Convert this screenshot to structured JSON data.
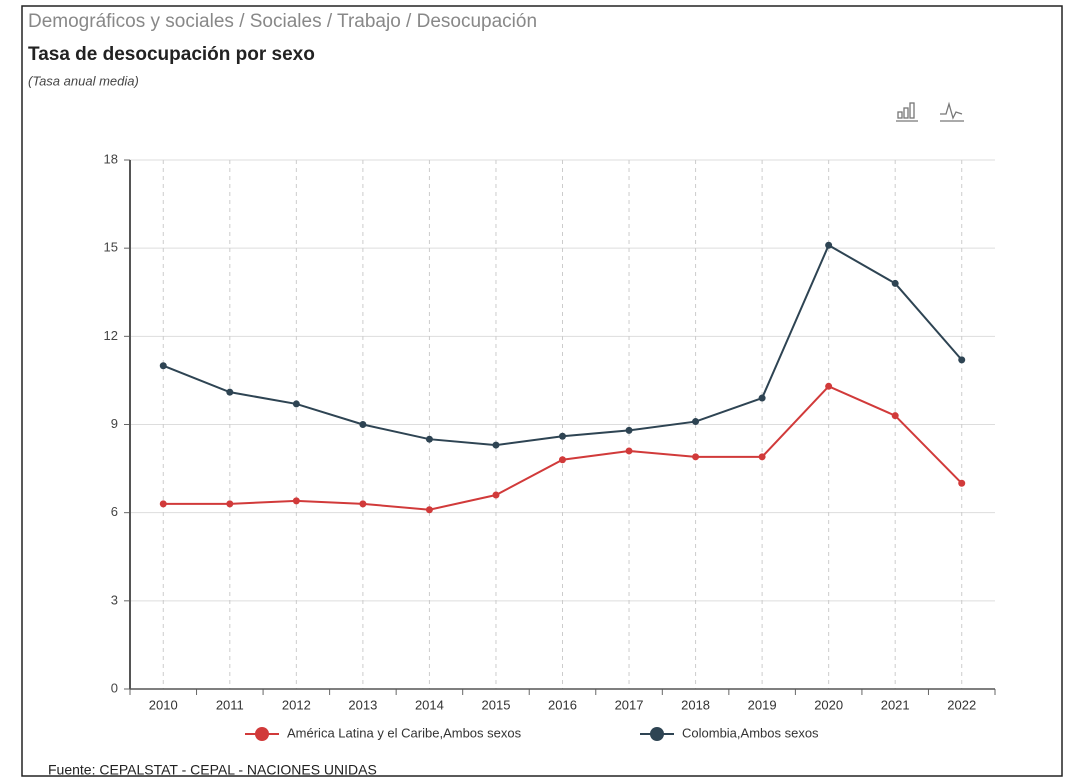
{
  "breadcrumb": "Demográficos y sociales / Sociales / Trabajo / Desocupación",
  "source": "Fuente: CEPALSTAT - CEPAL - NACIONES UNIDAS",
  "chart_data": {
    "type": "line",
    "title": "Tasa de desocupación por sexo",
    "subtitle": "(Tasa anual media)",
    "categories": [
      "2010",
      "2011",
      "2012",
      "2013",
      "2014",
      "2015",
      "2016",
      "2017",
      "2018",
      "2019",
      "2020",
      "2021",
      "2022"
    ],
    "series": [
      {
        "name": "América Latina y el Caribe,Ambos sexos",
        "color": "#d13a3a",
        "values": [
          6.3,
          6.3,
          6.4,
          6.3,
          6.1,
          6.6,
          7.8,
          8.1,
          7.9,
          7.9,
          10.3,
          9.3,
          7.0
        ]
      },
      {
        "name": "Colombia,Ambos sexos",
        "color": "#2e4453",
        "values": [
          11.0,
          10.1,
          9.7,
          9.0,
          8.5,
          8.3,
          8.6,
          8.8,
          9.1,
          9.9,
          15.1,
          13.8,
          11.2
        ]
      }
    ],
    "ylim": [
      0,
      18
    ],
    "yticks": [
      0,
      3,
      6,
      9,
      12,
      15,
      18
    ],
    "grid": true
  }
}
